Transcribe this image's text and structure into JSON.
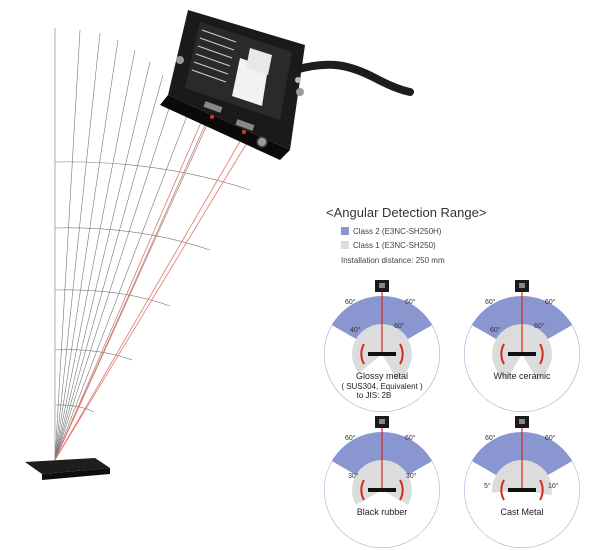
{
  "title": "<Angular Detection Range>",
  "legend": [
    {
      "label": "Class 2 (E3NC-SH250H)",
      "color": "#8a96cf"
    },
    {
      "label": "Class 1 (E3NC-SH250)",
      "color": "#dcdcdc"
    }
  ],
  "installation": "Installation distance: 250 mm",
  "colors": {
    "outer": "#8a96cf",
    "inner": "#dcdcdc",
    "beam": "#d8281e",
    "arrow": "#d8281e"
  },
  "panels": [
    {
      "name": "Glossy metal",
      "sub1": "( SUS304, Equivalent )",
      "sub2": "to JIS: 2B",
      "outer_left": "60°",
      "outer_right": "60°",
      "inner_left": "40°",
      "inner_right": "60°",
      "outer_left_angle": 60,
      "outer_right_angle": 60,
      "inner_left_angle": 40,
      "inner_right_angle": 60
    },
    {
      "name": "White ceramic",
      "sub1": "",
      "sub2": "",
      "outer_left": "60°",
      "outer_right": "60°",
      "inner_left": "60°",
      "inner_right": "60°",
      "outer_left_angle": 60,
      "outer_right_angle": 60,
      "inner_left_angle": 60,
      "inner_right_angle": 60
    },
    {
      "name": "Black rubber",
      "sub1": "",
      "sub2": "",
      "outer_left": "60°",
      "outer_right": "60°",
      "inner_left": "30°",
      "inner_right": "30°",
      "outer_left_angle": 60,
      "outer_right_angle": 60,
      "inner_left_angle": 30,
      "inner_right_angle": 30
    },
    {
      "name": "Cast Metal",
      "sub1": "",
      "sub2": "",
      "outer_left": "60°",
      "outer_right": "60°",
      "inner_left": "5°",
      "inner_right": "10°",
      "outer_left_angle": 60,
      "outer_right_angle": 60,
      "inner_left_angle": 5,
      "inner_right_angle": 10
    }
  ]
}
